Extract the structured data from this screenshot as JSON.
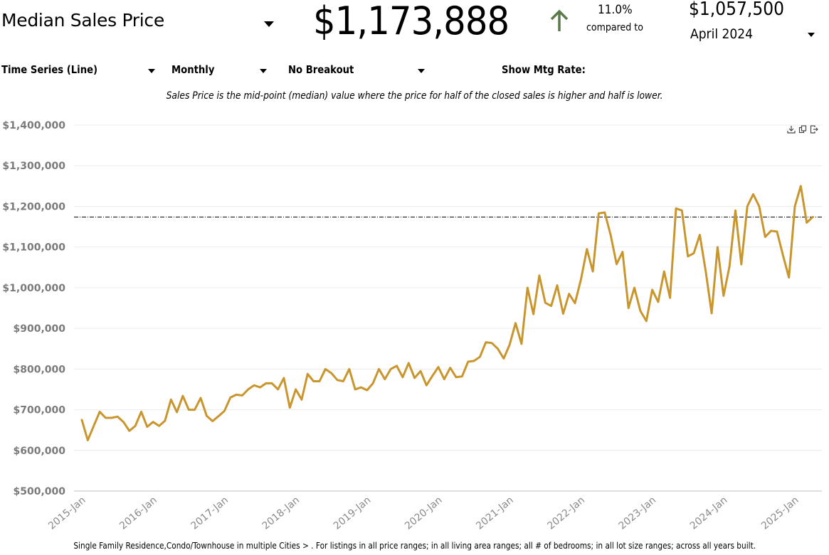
{
  "header": {
    "metric_label": "Median Sales Price",
    "current_value": "$1,173,888",
    "change_icon": "arrow-up-icon",
    "change_percent": "11.0%",
    "compared_to_label": "compared to",
    "compare_value": "$1,057,500",
    "compare_period": "April 2024",
    "up_arrow_color": "#5a7a4a"
  },
  "controls": {
    "chart_type": "Time Series (Line)",
    "interval": "Monthly",
    "breakout": "No Breakout",
    "mtg_rate_label": "Show Mtg Rate:"
  },
  "description": "Sales Price is the mid-point (median) value where the price for half of the closed sales is higher and half is lower.",
  "toolbar": {
    "icons": [
      "download-icon",
      "copy-icon",
      "export-icon"
    ]
  },
  "footer": "Single Family Residence,Condo/Townhouse in multiple Cities > . For listings in all price ranges; in all living area ranges; all # of bedrooms; in all lot size ranges; across all years built.",
  "chart_data": {
    "type": "line",
    "title": "Median Sales Price",
    "xlabel": "",
    "ylabel": "",
    "ylim": [
      500000,
      1400000
    ],
    "y_ticks": [
      500000,
      600000,
      700000,
      800000,
      900000,
      1000000,
      1100000,
      1200000,
      1300000,
      1400000
    ],
    "y_tick_labels": [
      "$500,000",
      "$600,000",
      "$700,000",
      "$800,000",
      "$900,000",
      "$1,000,000",
      "$1,100,000",
      "$1,200,000",
      "$1,300,000",
      "$1,400,000"
    ],
    "x_tick_labels": [
      "2015-Jan",
      "2016-Jan",
      "2017-Jan",
      "2018-Jan",
      "2019-Jan",
      "2020-Jan",
      "2021-Jan",
      "2022-Jan",
      "2023-Jan",
      "2024-Jan",
      "2025-Jan"
    ],
    "x_start": "2015-Jan",
    "x_end": "2025-Apr",
    "grid": true,
    "line_color": "#c9962e",
    "reference_line": {
      "value": 1173888,
      "style": "dash-dot",
      "color": "#000000"
    },
    "series": [
      {
        "name": "Median Sales Price",
        "values": [
          675000,
          625000,
          660000,
          695000,
          680000,
          680000,
          683000,
          670000,
          648000,
          660000,
          695000,
          658000,
          670000,
          660000,
          673000,
          725000,
          694000,
          734000,
          700000,
          700000,
          729000,
          685000,
          672000,
          684000,
          697000,
          730000,
          737000,
          735000,
          750000,
          760000,
          755000,
          765000,
          765000,
          750000,
          778000,
          705000,
          750000,
          725000,
          788000,
          770000,
          770000,
          800000,
          790000,
          773000,
          770000,
          800000,
          750000,
          755000,
          748000,
          765000,
          800000,
          775000,
          800000,
          808000,
          780000,
          815000,
          778000,
          795000,
          760000,
          783000,
          805000,
          775000,
          803000,
          780000,
          782000,
          818000,
          820000,
          830000,
          866000,
          864000,
          850000,
          826000,
          860000,
          913000,
          862000,
          1000000,
          935000,
          1030000,
          963000,
          955000,
          1006000,
          936000,
          985000,
          962000,
          1020000,
          1095000,
          1040000,
          1183000,
          1185000,
          1130000,
          1058000,
          1088000,
          950000,
          1000000,
          943000,
          918000,
          995000,
          965000,
          1040000,
          975000,
          1195000,
          1190000,
          1077000,
          1085000,
          1130000,
          1040000,
          937000,
          1100000,
          980000,
          1053000,
          1190000,
          1057500,
          1200000,
          1230000,
          1200000,
          1125000,
          1140000,
          1138000,
          1080000,
          1025000,
          1200000,
          1250000,
          1160000,
          1173888
        ]
      }
    ]
  }
}
